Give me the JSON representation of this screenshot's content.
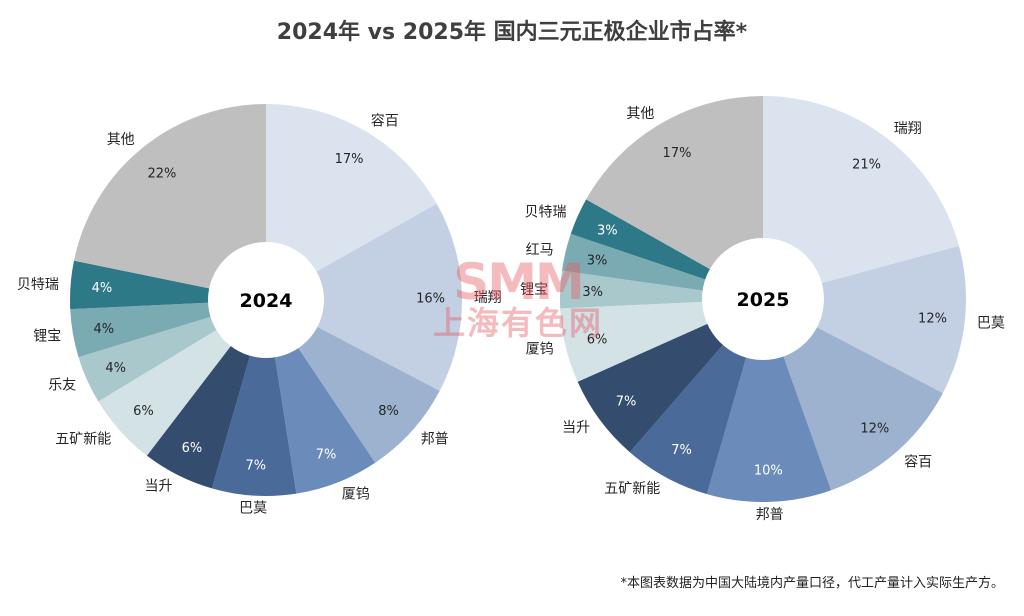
{
  "title": "2024年 vs 2025年 国内三元正极企业市占率*",
  "footnote": "*本图表数据为中国大陆境内产量口径，代工产量计入实际生产方。",
  "watermark": {
    "brand": "SMM",
    "cn": "上海有色网"
  },
  "chart_data": [
    {
      "type": "pie",
      "variant": "donut",
      "center_label": "2024",
      "unit": "%",
      "start": "top, clockwise",
      "slices": [
        {
          "name": "容百",
          "value": 17,
          "label": "17%",
          "color": "#dbe3ee",
          "label_color": "#262626"
        },
        {
          "name": "瑞翔",
          "value": 16,
          "label": "16%",
          "color": "#c3cfe2",
          "label_color": "#262626"
        },
        {
          "name": "邦普",
          "value": 8,
          "label": "8%",
          "color": "#9cb2cf",
          "label_color": "#262626"
        },
        {
          "name": "厦钨",
          "value": 7,
          "label": "7%",
          "color": "#6b8cba",
          "label_color": "#ffffff"
        },
        {
          "name": "巴莫",
          "value": 7,
          "label": "7%",
          "color": "#4a6a9a",
          "label_color": "#ffffff"
        },
        {
          "name": "当升",
          "value": 6,
          "label": "6%",
          "color": "#344d6e",
          "label_color": "#ffffff"
        },
        {
          "name": "五矿新能",
          "value": 6,
          "label": "6%",
          "color": "#d3e2e5",
          "label_color": "#262626"
        },
        {
          "name": "乐友",
          "value": 4,
          "label": "4%",
          "color": "#a8c8cc",
          "label_color": "#262626"
        },
        {
          "name": "锂宝",
          "value": 4,
          "label": "4%",
          "color": "#7aabb3",
          "label_color": "#262626"
        },
        {
          "name": "贝特瑞",
          "value": 4,
          "label": "4%",
          "color": "#2e7987",
          "label_color": "#ffffff"
        },
        {
          "name": "其他",
          "value": 22,
          "label": "22%",
          "color": "#bfbfbf",
          "label_color": "#262626"
        }
      ]
    },
    {
      "type": "pie",
      "variant": "donut",
      "center_label": "2025",
      "unit": "%",
      "start": "top, clockwise",
      "slices": [
        {
          "name": "瑞翔",
          "value": 21,
          "label": "21%",
          "color": "#dbe3ee",
          "label_color": "#262626"
        },
        {
          "name": "巴莫",
          "value": 12,
          "label": "12%",
          "color": "#c3cfe2",
          "label_color": "#262626"
        },
        {
          "name": "容百",
          "value": 12,
          "label": "12%",
          "color": "#9cb2cf",
          "label_color": "#262626"
        },
        {
          "name": "邦普",
          "value": 10,
          "label": "10%",
          "color": "#6b8cba",
          "label_color": "#ffffff"
        },
        {
          "name": "五矿新能",
          "value": 7,
          "label": "7%",
          "color": "#4a6a9a",
          "label_color": "#ffffff"
        },
        {
          "name": "当升",
          "value": 7,
          "label": "7%",
          "color": "#344d6e",
          "label_color": "#ffffff"
        },
        {
          "name": "厦钨",
          "value": 6,
          "label": "6%",
          "color": "#d3e2e5",
          "label_color": "#262626"
        },
        {
          "name": "锂宝",
          "value": 3,
          "label": "3%",
          "color": "#a8c8cc",
          "label_color": "#262626"
        },
        {
          "name": "红马",
          "value": 3,
          "label": "3%",
          "color": "#7aabb3",
          "label_color": "#262626"
        },
        {
          "name": "贝特瑞",
          "value": 3,
          "label": "3%",
          "color": "#2e7987",
          "label_color": "#ffffff"
        },
        {
          "name": "其他",
          "value": 17,
          "label": "17%",
          "color": "#bfbfbf",
          "label_color": "#262626"
        }
      ]
    }
  ]
}
